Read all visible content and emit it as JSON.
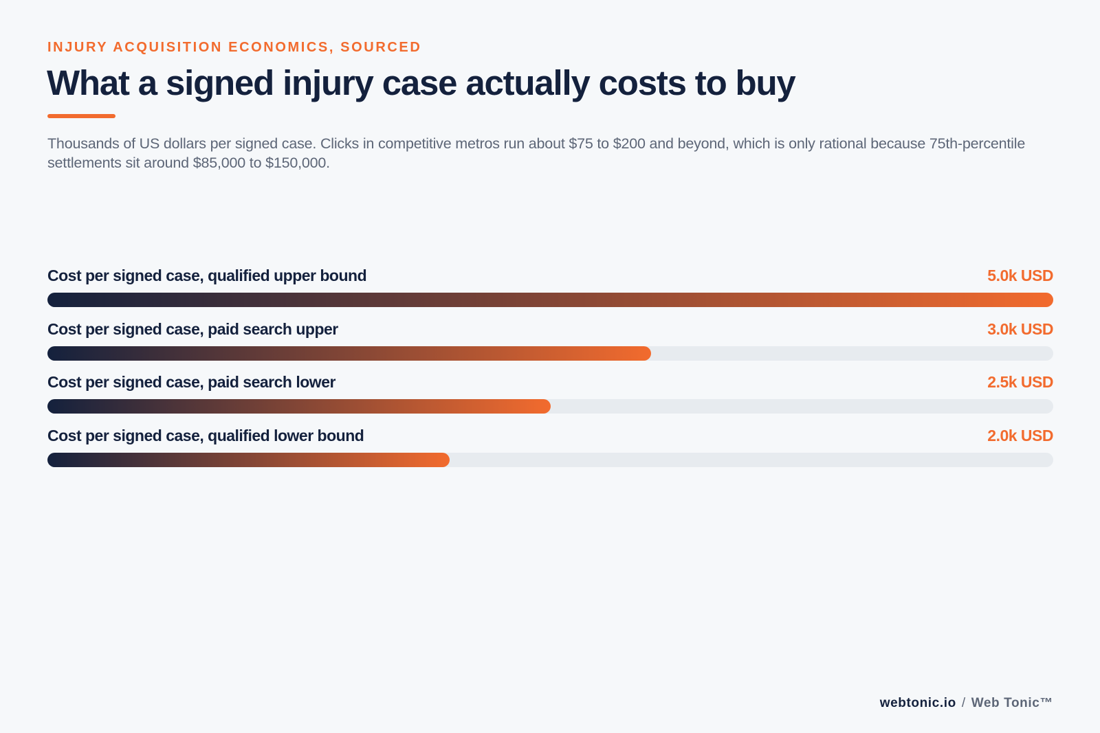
{
  "header": {
    "eyebrow": "INJURY ACQUISITION ECONOMICS, SOURCED",
    "title": "What a signed injury case actually costs to buy",
    "subtitle": "Thousands of US dollars per signed case. Clicks in competitive metros run about $75 to $200 and beyond, which is only rational because 75th-percentile settlements sit around $85,000 to $150,000."
  },
  "footer": {
    "domain": "webtonic.io",
    "separator": "/",
    "brand": "Web Tonic™"
  },
  "colors": {
    "background": "#f6f8fa",
    "accent": "#f26b2e",
    "dark": "#14213d",
    "muted": "#5d6677",
    "track": "#e7ebef"
  },
  "chart_data": {
    "type": "bar",
    "orientation": "horizontal",
    "value_unit": "k USD",
    "xlim": [
      0,
      5.0
    ],
    "grid": false,
    "categories": [
      "Cost per signed case, qualified upper bound",
      "Cost per signed case, paid search upper",
      "Cost per signed case, paid search lower",
      "Cost per signed case, qualified lower bound"
    ],
    "values": [
      5.0,
      3.0,
      2.5,
      2.0
    ],
    "value_labels": [
      "5.0k USD",
      "3.0k USD",
      "2.5k USD",
      "2.0k USD"
    ]
  }
}
